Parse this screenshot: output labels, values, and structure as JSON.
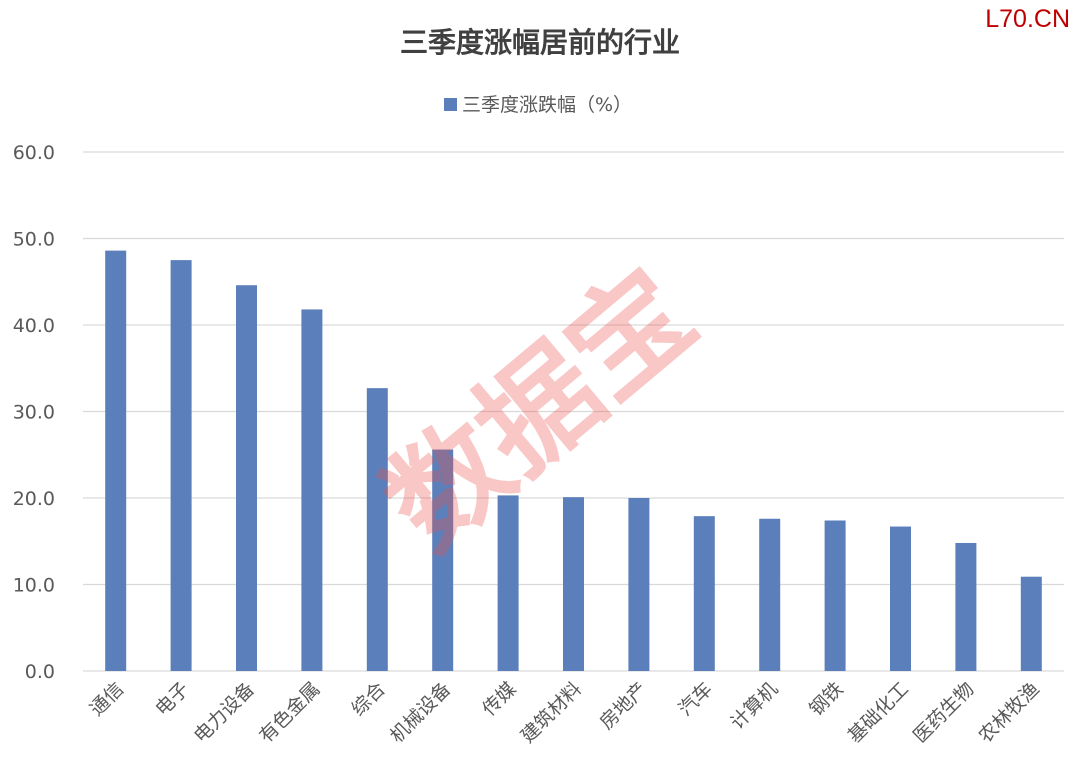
{
  "brand_mark": "L70.CN",
  "watermark": "数据宝",
  "colors": {
    "bar": "#5b7fba",
    "grid": "#d9d9d9",
    "brand": "#c00000"
  },
  "chart_data": {
    "type": "bar",
    "title": "三季度涨幅居前的行业",
    "legend_position": "top-center",
    "grid": true,
    "ylim": [
      0,
      60
    ],
    "yticks": [
      0,
      10,
      20,
      30,
      40,
      50,
      60
    ],
    "ytick_labels": [
      "0.0",
      "10.0",
      "20.0",
      "30.0",
      "40.0",
      "50.0",
      "60.0"
    ],
    "categories": [
      "通信",
      "电子",
      "电力设备",
      "有色金属",
      "综合",
      "机械设备",
      "传媒",
      "建筑材料",
      "房地产",
      "汽车",
      "计算机",
      "钢铁",
      "基础化工",
      "医药生物",
      "农林牧渔"
    ],
    "series": [
      {
        "name": "三季度涨跌幅（%）",
        "values": [
          48.6,
          47.5,
          44.6,
          41.8,
          32.7,
          25.6,
          20.3,
          20.1,
          20.0,
          17.9,
          17.6,
          17.4,
          16.7,
          14.8,
          10.9
        ]
      }
    ]
  }
}
